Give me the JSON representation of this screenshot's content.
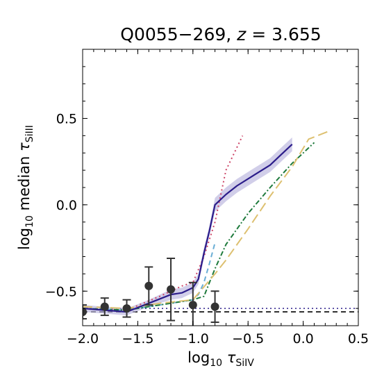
{
  "chart_data": {
    "type": "line",
    "title_main": "Q0055−269, ",
    "title_z": "z",
    "title_rest": " = 3.655",
    "xlabel_prefix": "log",
    "xlabel_sub": "10",
    "xlabel_sym": " τ",
    "xlabel_ion": "SiIV",
    "ylabel_prefix": "log",
    "ylabel_sub": "10",
    "ylabel_word": " median ",
    "ylabel_sym": "τ",
    "ylabel_ion": "SiIII",
    "xlim": [
      -2.0,
      0.5
    ],
    "ylim": [
      -0.7,
      0.9
    ],
    "xticks": [
      -2.0,
      -1.5,
      -1.0,
      -0.5,
      0.0,
      0.5
    ],
    "xtick_labels": [
      "−2.0",
      "−1.5",
      "−1.0",
      "−0.5",
      "0.0",
      "0.5"
    ],
    "yticks": [
      -0.5,
      0.0,
      0.5
    ],
    "ytick_labels": [
      "−0.5",
      "0.0",
      "0.5"
    ],
    "grid": false,
    "observed": {
      "x": [
        -2.0,
        -1.8,
        -1.6,
        -1.4,
        -1.2,
        -1.0,
        -0.8
      ],
      "y": [
        -0.62,
        -0.59,
        -0.6,
        -0.47,
        -0.49,
        -0.58,
        -0.59
      ],
      "yerr": [
        0.04,
        0.05,
        0.05,
        0.11,
        0.18,
        0.13,
        0.09
      ]
    },
    "series": [
      {
        "x": [
          -2.0,
          -1.8,
          -1.6,
          -1.4,
          -1.2,
          -1.1,
          -1.0,
          -0.95,
          -0.9,
          -0.85,
          -0.8,
          -0.7,
          -0.6,
          -0.45,
          -0.3,
          -0.2,
          -0.1
        ],
        "y": [
          -0.6,
          -0.61,
          -0.62,
          -0.57,
          -0.52,
          -0.51,
          -0.48,
          -0.43,
          -0.28,
          -0.15,
          0.0,
          0.06,
          0.11,
          0.17,
          0.23,
          0.29,
          0.35
        ],
        "band_lo": [
          -0.62,
          -0.63,
          -0.64,
          -0.59,
          -0.55,
          -0.54,
          -0.51,
          -0.46,
          -0.31,
          -0.18,
          -0.04,
          0.02,
          0.07,
          0.13,
          0.19,
          0.25,
          0.31
        ],
        "band_hi": [
          -0.58,
          -0.59,
          -0.6,
          -0.55,
          -0.49,
          -0.48,
          -0.45,
          -0.4,
          -0.25,
          -0.12,
          0.04,
          0.1,
          0.15,
          0.21,
          0.27,
          0.33,
          0.39
        ],
        "color": "#2b1c8a",
        "band_color": "#b9b3dd",
        "style": "solid"
      },
      {
        "x": [
          -2.0,
          -1.6,
          -1.3,
          -1.1,
          -1.0,
          -0.9,
          -0.8,
          -0.7,
          -0.55
        ],
        "y": [
          -0.6,
          -0.61,
          -0.53,
          -0.47,
          -0.45,
          -0.3,
          -0.1,
          0.2,
          0.4
        ],
        "color": "#cc4466",
        "style": "dotted"
      },
      {
        "x": [
          -2.0,
          -1.6,
          -1.3,
          -1.1,
          -1.0,
          -0.95,
          -0.9,
          -0.85,
          -0.8
        ],
        "y": [
          -0.6,
          -0.61,
          -0.58,
          -0.56,
          -0.55,
          -0.52,
          -0.45,
          -0.34,
          -0.22
        ],
        "color": "#6aaed6",
        "style": "dashed"
      },
      {
        "x": [
          -2.0,
          -1.6,
          -1.3,
          -1.1,
          -1.0,
          -0.9,
          -0.8,
          -0.7,
          -0.5,
          -0.3,
          -0.1,
          0.0,
          0.1
        ],
        "y": [
          -0.6,
          -0.61,
          -0.58,
          -0.56,
          -0.55,
          -0.53,
          -0.37,
          -0.23,
          -0.05,
          0.1,
          0.24,
          0.3,
          0.36
        ],
        "color": "#1e7a3c",
        "style": "dashdot"
      },
      {
        "x": [
          -2.0,
          -1.6,
          -1.3,
          -1.0,
          -0.8,
          -0.7,
          -0.5,
          -0.3,
          -0.1,
          0.05,
          0.25
        ],
        "y": [
          -0.59,
          -0.6,
          -0.57,
          -0.55,
          -0.4,
          -0.32,
          -0.14,
          0.05,
          0.22,
          0.38,
          0.43
        ],
        "color": "#ddc070",
        "style": "longdash"
      }
    ],
    "reference_lines": [
      {
        "y": -0.62,
        "color": "#000000",
        "style": "dashed"
      },
      {
        "y": -0.6,
        "color": "#2b1c8a",
        "style": "dotted"
      }
    ]
  }
}
